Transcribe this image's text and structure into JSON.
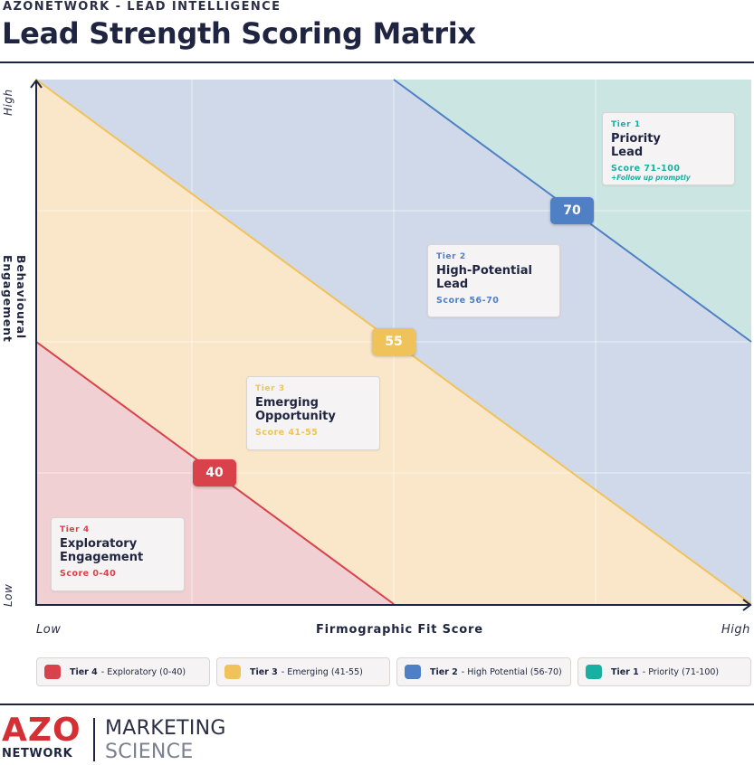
{
  "header": {
    "kicker": "AZONETWORK - LEAD INTELLIGENCE",
    "title": "Lead Strength Scoring Matrix"
  },
  "axes": {
    "x_label": "Firmographic Fit Score",
    "x_low": "Low",
    "x_high": "High",
    "y_label": "Behavioural Engagement",
    "y_low": "Low",
    "y_high": "High"
  },
  "colors": {
    "tier4": "#d9424a",
    "tier3": "#f0c35a",
    "tier2": "#4f7fc4",
    "tier1": "#18b0a3",
    "tier4_fill": "#f0d0d2",
    "tier3_fill": "#fae6c8",
    "tier2_fill": "#cfd9ea",
    "tier1_fill": "#cbe5e2"
  },
  "thresholds": [
    {
      "value": "40",
      "color_key": "tier4"
    },
    {
      "value": "55",
      "color_key": "tier3"
    },
    {
      "value": "70",
      "color_key": "tier2"
    }
  ],
  "tiers": [
    {
      "tier": "Tier 1",
      "name_line1": "Priority",
      "name_line2": "Lead",
      "score": "Score 71-100",
      "note": "+Follow up promptly",
      "color_key": "tier1"
    },
    {
      "tier": "Tier 2",
      "name_line1": "High-Potential",
      "name_line2": "Lead",
      "score": "Score 56-70",
      "note": "",
      "color_key": "tier2"
    },
    {
      "tier": "Tier 3",
      "name_line1": "Emerging",
      "name_line2": "Opportunity",
      "score": "Score 41-55",
      "note": "",
      "color_key": "tier3"
    },
    {
      "tier": "Tier 4",
      "name_line1": "Exploratory",
      "name_line2": "Engagement",
      "score": "Score 0-40",
      "note": "",
      "color_key": "tier4"
    }
  ],
  "legend": [
    {
      "bold": "Tier 4",
      "rest": " - Exploratory (0-40)",
      "color_key": "tier4"
    },
    {
      "bold": "Tier 3",
      "rest": " - Emerging (41-55)",
      "color_key": "tier3"
    },
    {
      "bold": "Tier 2",
      "rest": " - High Potential (56-70)",
      "color_key": "tier2"
    },
    {
      "bold": "Tier 1",
      "rest": " - Priority (71-100)",
      "color_key": "tier1"
    }
  ],
  "logo": {
    "azo": "AZO",
    "network": "NETWORK",
    "marketing": "MARKETING",
    "science": "SCIENCE"
  }
}
